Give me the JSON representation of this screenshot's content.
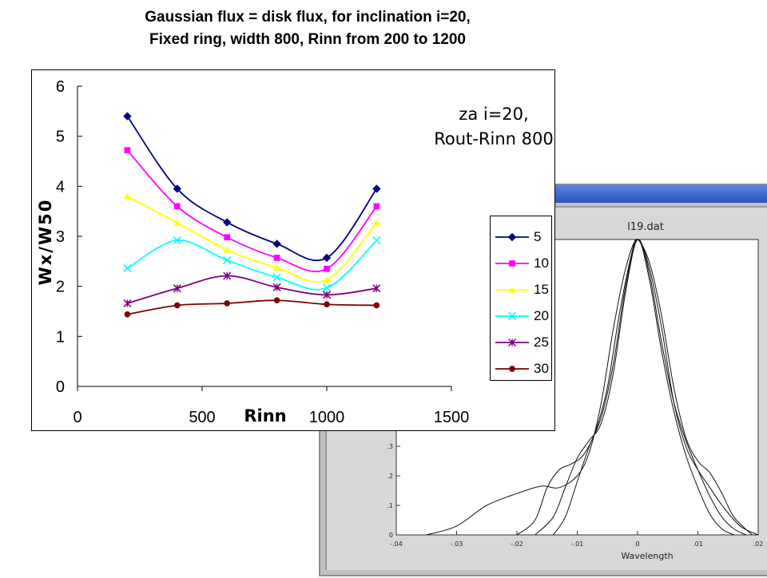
{
  "slide": {
    "title_line1": "Gaussian flux = disk flux, for inclination i=20,",
    "title_line2": "Fixed ring, width 800, Rinn from 200 to 1200"
  },
  "annotation": {
    "line1": "za i=20,",
    "line2": "Rout-Rinn 800"
  },
  "chart_data": [
    {
      "type": "line",
      "xlabel": "Rinn",
      "ylabel": "Wx/W50",
      "xlim": [
        0,
        1500
      ],
      "ylim": [
        0,
        6
      ],
      "xticks": [
        0,
        500,
        1000,
        1500
      ],
      "yticks": [
        0,
        1,
        2,
        3,
        4,
        5,
        6
      ],
      "grid": false,
      "legend_position": "right",
      "x": [
        200,
        400,
        600,
        800,
        1000,
        1200
      ],
      "series": [
        {
          "name": "5",
          "values": [
            5.4,
            3.95,
            3.28,
            2.85,
            2.57,
            3.95
          ],
          "color": "#000080",
          "marker": "diamond"
        },
        {
          "name": "10",
          "values": [
            4.72,
            3.6,
            2.98,
            2.57,
            2.35,
            3.6
          ],
          "color": "#ff00ff",
          "marker": "square"
        },
        {
          "name": "15",
          "values": [
            3.8,
            3.27,
            2.73,
            2.37,
            2.13,
            3.27
          ],
          "color": "#ffff00",
          "marker": "triangle"
        },
        {
          "name": "20",
          "values": [
            2.36,
            2.92,
            2.52,
            2.18,
            1.97,
            2.92
          ],
          "color": "#00ffff",
          "marker": "x"
        },
        {
          "name": "25",
          "values": [
            1.66,
            1.96,
            2.21,
            1.98,
            1.83,
            1.96
          ],
          "color": "#800080",
          "marker": "star"
        },
        {
          "name": "30",
          "values": [
            1.44,
            1.62,
            1.66,
            1.72,
            1.64,
            1.62
          ],
          "color": "#800000",
          "marker": "circle"
        }
      ]
    },
    {
      "type": "line",
      "title": "l19.dat",
      "xlabel": "Wavelength",
      "xticks": [
        "-.04",
        "-.03",
        "-.02",
        "-.01",
        "0",
        ".01",
        ".02"
      ],
      "yticks": [
        "0",
        ".1",
        ".2",
        ".3"
      ],
      "xlim": [
        -0.04,
        0.02
      ],
      "ylim": [
        0,
        1
      ],
      "curves": [
        {
          "x": [
            -0.035,
            -0.03,
            -0.025,
            -0.02,
            -0.016,
            -0.013,
            -0.01,
            -0.008,
            -0.006,
            -0.004,
            -0.002,
            0,
            0.002,
            0.004,
            0.006,
            0.008,
            0.01,
            0.012,
            0.014,
            0.017,
            0.02
          ],
          "y": [
            0,
            0.03,
            0.1,
            0.14,
            0.165,
            0.16,
            0.2,
            0.28,
            0.45,
            0.7,
            0.9,
            1,
            0.9,
            0.7,
            0.45,
            0.3,
            0.22,
            0.16,
            0.1,
            0.03,
            0
          ]
        },
        {
          "x": [
            -0.02,
            -0.017,
            -0.015,
            -0.013,
            -0.011,
            -0.009,
            -0.007,
            -0.005,
            -0.003,
            -0.001,
            0,
            0.002,
            0.004,
            0.006,
            0.008,
            0.01,
            0.012,
            0.014,
            0.016,
            0.019
          ],
          "y": [
            0,
            0.05,
            0.16,
            0.22,
            0.24,
            0.27,
            0.35,
            0.5,
            0.75,
            0.95,
            1,
            0.92,
            0.74,
            0.5,
            0.33,
            0.25,
            0.21,
            0.14,
            0.06,
            0
          ]
        },
        {
          "x": [
            -0.017,
            -0.014,
            -0.012,
            -0.01,
            -0.008,
            -0.006,
            -0.004,
            -0.002,
            0,
            0.002,
            0.004,
            0.006,
            0.008,
            0.01,
            0.012,
            0.014,
            0.016,
            0.018
          ],
          "y": [
            0,
            0.06,
            0.16,
            0.26,
            0.32,
            0.38,
            0.55,
            0.82,
            1,
            0.88,
            0.65,
            0.45,
            0.32,
            0.22,
            0.13,
            0.06,
            0.02,
            0
          ]
        },
        {
          "x": [
            -0.014,
            -0.012,
            -0.01,
            -0.008,
            -0.006,
            -0.004,
            -0.002,
            0,
            0.002,
            0.004,
            0.006,
            0.008,
            0.01,
            0.012,
            0.014,
            0.016
          ],
          "y": [
            0,
            0.06,
            0.18,
            0.3,
            0.4,
            0.58,
            0.84,
            1,
            0.86,
            0.62,
            0.42,
            0.27,
            0.16,
            0.07,
            0.02,
            0
          ]
        }
      ]
    }
  ]
}
